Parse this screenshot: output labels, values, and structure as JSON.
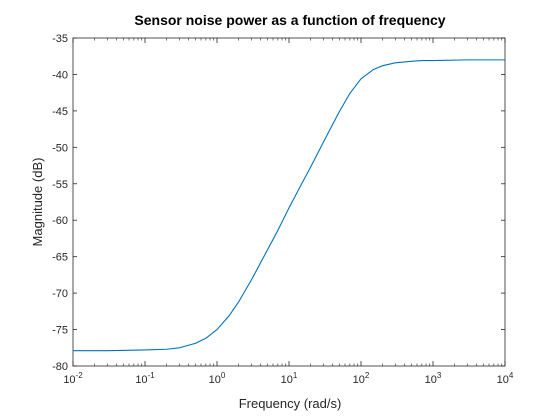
{
  "chart_data": {
    "type": "line",
    "title": "Sensor noise power as a function of frequency",
    "xlabel": "Frequency (rad/s)",
    "ylabel": "Magnitude (dB)",
    "xscale": "log",
    "xlim": [
      0.01,
      10000
    ],
    "ylim": [
      -80,
      -35
    ],
    "xtick_labels": [
      {
        "base": "10",
        "exp": "-2"
      },
      {
        "base": "10",
        "exp": "-1"
      },
      {
        "base": "10",
        "exp": "0"
      },
      {
        "base": "10",
        "exp": "1"
      },
      {
        "base": "10",
        "exp": "2"
      },
      {
        "base": "10",
        "exp": "3"
      },
      {
        "base": "10",
        "exp": "4"
      }
    ],
    "yticks": [
      "-80",
      "-75",
      "-70",
      "-65",
      "-60",
      "-55",
      "-50",
      "-45",
      "-40",
      "-35"
    ],
    "grid": false,
    "line_color": "#0072BD",
    "series": [
      {
        "x": [
          0.01,
          0.03,
          0.1,
          0.2,
          0.3,
          0.5,
          0.7,
          1,
          1.5,
          2,
          3,
          5,
          7,
          10,
          15,
          20,
          30,
          50,
          70,
          100,
          150,
          200,
          300,
          500,
          700,
          1000,
          3000,
          10000
        ],
        "y": [
          -77.9,
          -77.9,
          -77.8,
          -77.7,
          -77.5,
          -76.9,
          -76.2,
          -75.0,
          -73.0,
          -71.2,
          -68.2,
          -64.1,
          -61.4,
          -58.3,
          -55.0,
          -52.7,
          -49.3,
          -45.1,
          -42.6,
          -40.6,
          -39.3,
          -38.8,
          -38.4,
          -38.2,
          -38.1,
          -38.1,
          -38.0,
          -38.0
        ]
      }
    ]
  }
}
